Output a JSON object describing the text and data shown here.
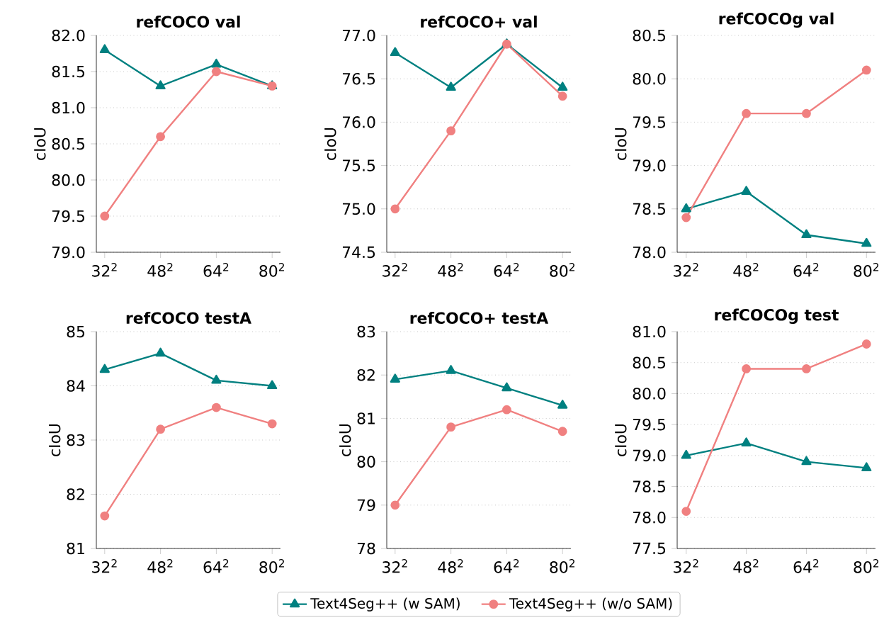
{
  "chart_data": [
    {
      "type": "line",
      "title": "refCOCO val",
      "ylabel": "cIoU",
      "categories": [
        "32$^{2}$",
        "48$^{2}$",
        "64$^{2}$",
        "80$^{2}$"
      ],
      "ylim": [
        79,
        82
      ],
      "yticks": [
        {
          "value": 79,
          "label": "79.0"
        },
        {
          "value": 79.5,
          "label": "79.5"
        },
        {
          "value": 80,
          "label": "80.0"
        },
        {
          "value": 80.5,
          "label": "80.5"
        },
        {
          "value": 81,
          "label": "81.0"
        },
        {
          "value": 81.5,
          "label": "81.5"
        },
        {
          "value": 82,
          "label": "82.0"
        }
      ],
      "grid": "y",
      "series": [
        {
          "color": "#008080",
          "marker": "triangle",
          "values": [
            81.8,
            81.3,
            81.6,
            81.3
          ]
        },
        {
          "color": "#f08080",
          "marker": "circle",
          "values": [
            79.5,
            80.6,
            81.5,
            81.3
          ]
        }
      ]
    },
    {
      "type": "line",
      "title": "refCOCO+ val",
      "ylabel": "cIoU",
      "categories": [
        "32$^{2}$",
        "48$^{2}$",
        "64$^{2}$",
        "80$^{2}$"
      ],
      "ylim": [
        74.5,
        77
      ],
      "yticks": [
        {
          "value": 74.5,
          "label": "74.5"
        },
        {
          "value": 75,
          "label": "75.0"
        },
        {
          "value": 75.5,
          "label": "75.5"
        },
        {
          "value": 76,
          "label": "76.0"
        },
        {
          "value": 76.5,
          "label": "76.5"
        },
        {
          "value": 77,
          "label": "77.0"
        }
      ],
      "grid": "y",
      "series": [
        {
          "color": "#008080",
          "marker": "triangle",
          "values": [
            76.8,
            76.4,
            76.9,
            76.4
          ]
        },
        {
          "color": "#f08080",
          "marker": "circle",
          "values": [
            75.0,
            75.9,
            76.9,
            76.3
          ]
        }
      ]
    },
    {
      "type": "line",
      "title": "refCOCOg val",
      "ylabel": "cIoU",
      "categories": [
        "32$^{2}$",
        "48$^{2}$",
        "64$^{2}$",
        "80$^{2}$"
      ],
      "ylim": [
        78,
        80.5
      ],
      "yticks": [
        {
          "value": 78,
          "label": "78.0"
        },
        {
          "value": 78.5,
          "label": "78.5"
        },
        {
          "value": 79,
          "label": "79.0"
        },
        {
          "value": 79.5,
          "label": "79.5"
        },
        {
          "value": 80,
          "label": "80.0"
        },
        {
          "value": 80.5,
          "label": "80.5"
        }
      ],
      "grid": "y",
      "series": [
        {
          "color": "#008080",
          "marker": "triangle",
          "values": [
            78.5,
            78.7,
            78.2,
            78.1
          ]
        },
        {
          "color": "#f08080",
          "marker": "circle",
          "values": [
            78.4,
            79.6,
            79.6,
            80.1
          ]
        }
      ]
    },
    {
      "type": "line",
      "title": "refCOCO testA",
      "ylabel": "cIoU",
      "categories": [
        "32$^{2}$",
        "48$^{2}$",
        "64$^{2}$",
        "80$^{2}$"
      ],
      "ylim": [
        81,
        85
      ],
      "yticks": [
        81,
        82,
        83,
        84,
        85
      ],
      "grid": "y",
      "series": [
        {
          "color": "#008080",
          "marker": "triangle",
          "values": [
            84.3,
            84.6,
            84.1,
            84.0
          ]
        },
        {
          "color": "#f08080",
          "marker": "circle",
          "values": [
            81.6,
            83.2,
            83.6,
            83.3
          ]
        }
      ]
    },
    {
      "type": "line",
      "title": "refCOCO+ testA",
      "ylabel": "cIoU",
      "categories": [
        "32$^{2}$",
        "48$^{2}$",
        "64$^{2}$",
        "80$^{2}$"
      ],
      "ylim": [
        78,
        83
      ],
      "yticks": [
        78,
        79,
        80,
        81,
        82,
        83
      ],
      "grid": "y",
      "legend": "bottom",
      "series": [
        {
          "name": "Text4Seg++ (w SAM)",
          "color": "#008080",
          "marker": "triangle",
          "values": [
            81.9,
            82.1,
            81.7,
            81.3
          ]
        },
        {
          "name": "Text4Seg++ (w/o SAM)",
          "color": "#f08080",
          "marker": "circle",
          "values": [
            79.0,
            80.8,
            81.2,
            80.7
          ]
        }
      ]
    },
    {
      "type": "line",
      "title": "refCOCOg test",
      "ylabel": "cIoU",
      "categories": [
        "32$^{2}$",
        "48$^{2}$",
        "64$^{2}$",
        "80$^{2}$"
      ],
      "ylim": [
        77.5,
        81
      ],
      "yticks": [
        {
          "value": 77.5,
          "label": "77.5"
        },
        {
          "value": 78,
          "label": "78.0"
        },
        {
          "value": 78.5,
          "label": "78.5"
        },
        {
          "value": 79,
          "label": "79.0"
        },
        {
          "value": 79.5,
          "label": "79.5"
        },
        {
          "value": 80,
          "label": "80.0"
        },
        {
          "value": 80.5,
          "label": "80.5"
        },
        {
          "value": 81,
          "label": "81.0"
        }
      ],
      "grid": "y",
      "series": [
        {
          "color": "#008080",
          "marker": "triangle",
          "values": [
            79.0,
            79.2,
            78.9,
            78.8
          ]
        },
        {
          "color": "#f08080",
          "marker": "circle",
          "values": [
            78.1,
            80.4,
            80.4,
            80.8
          ]
        }
      ]
    }
  ]
}
